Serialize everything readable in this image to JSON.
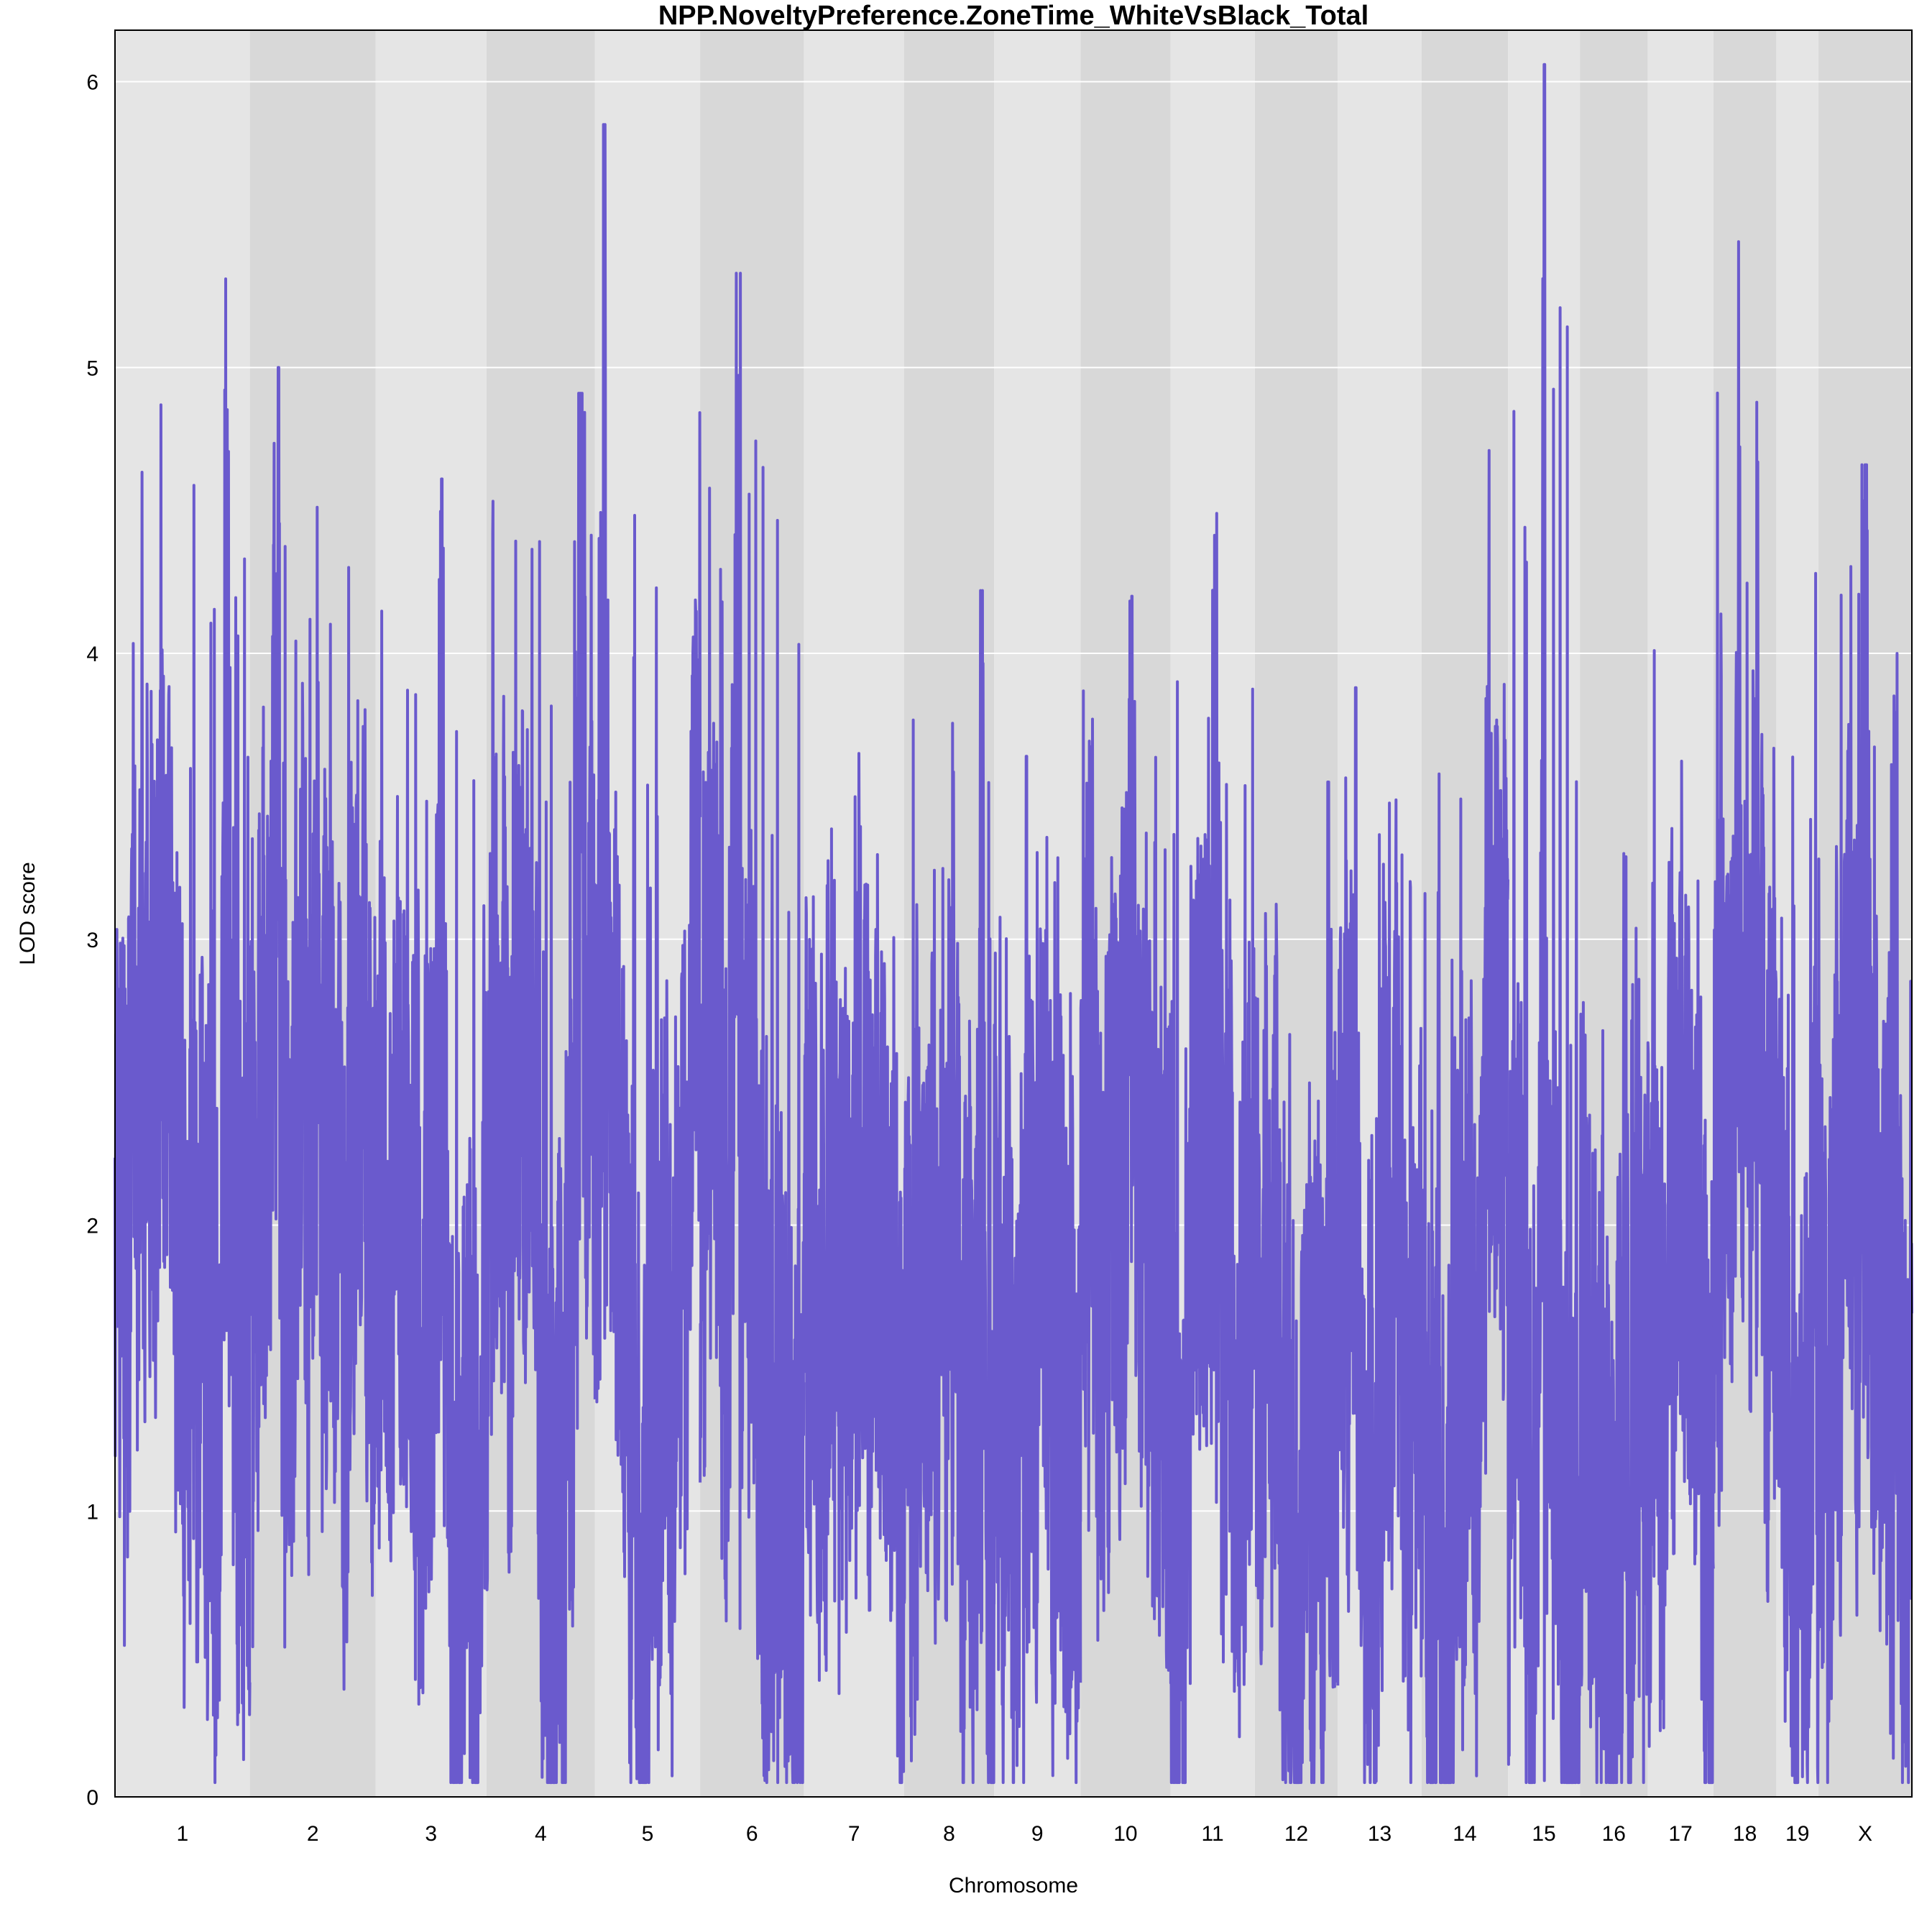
{
  "chart_data": {
    "type": "line",
    "title": "NPP.NoveltyPreference.ZoneTime_WhiteVsBlack_Total",
    "xlabel": "Chromosome",
    "ylabel": "LOD score",
    "ylim": [
      0,
      6.18
    ],
    "yticks": [
      0,
      1,
      2,
      3,
      4,
      5,
      6
    ],
    "grid": true,
    "line_color": "#6A5ACD",
    "band_colors": [
      "#E5E5E5",
      "#D8D8D8"
    ],
    "chromosomes": [
      {
        "name": "1",
        "length": 195,
        "peak": 5.31,
        "peak_at": 0.82
      },
      {
        "name": "2",
        "length": 182,
        "peak": 5.0,
        "peak_at": 0.23
      },
      {
        "name": "3",
        "length": 160,
        "peak": 4.61,
        "peak_at": 0.6
      },
      {
        "name": "4",
        "length": 157,
        "peak": 4.91,
        "peak_at": 0.88
      },
      {
        "name": "5",
        "length": 152,
        "peak": 5.85,
        "peak_at": 0.08
      },
      {
        "name": "6",
        "length": 150,
        "peak": 5.33,
        "peak_at": 0.35
      },
      {
        "name": "7",
        "length": 145,
        "peak": 3.65,
        "peak_at": 0.55
      },
      {
        "name": "8",
        "length": 130,
        "peak": 4.22,
        "peak_at": 0.85
      },
      {
        "name": "9",
        "length": 125,
        "peak": 3.64,
        "peak_at": 0.37
      },
      {
        "name": "10",
        "length": 130,
        "peak": 4.2,
        "peak_at": 0.57
      },
      {
        "name": "11",
        "length": 122,
        "peak": 4.49,
        "peak_at": 0.55
      },
      {
        "name": "12",
        "length": 120,
        "peak": 3.55,
        "peak_at": 0.88
      },
      {
        "name": "13",
        "length": 121,
        "peak": 3.88,
        "peak_at": 0.21
      },
      {
        "name": "14",
        "length": 125,
        "peak": 4.71,
        "peak_at": 0.78
      },
      {
        "name": "15",
        "length": 104,
        "peak": 6.06,
        "peak_at": 0.5
      },
      {
        "name": "16",
        "length": 98,
        "peak": 3.3,
        "peak_at": 0.65
      },
      {
        "name": "17",
        "length": 95,
        "peak": 4.01,
        "peak_at": 0.1
      },
      {
        "name": "18",
        "length": 91,
        "peak": 5.44,
        "peak_at": 0.4
      },
      {
        "name": "19",
        "length": 61,
        "peak": 4.28,
        "peak_at": 0.93
      },
      {
        "name": "X",
        "length": 135,
        "peak": 4.66,
        "peak_at": 0.5
      }
    ]
  }
}
